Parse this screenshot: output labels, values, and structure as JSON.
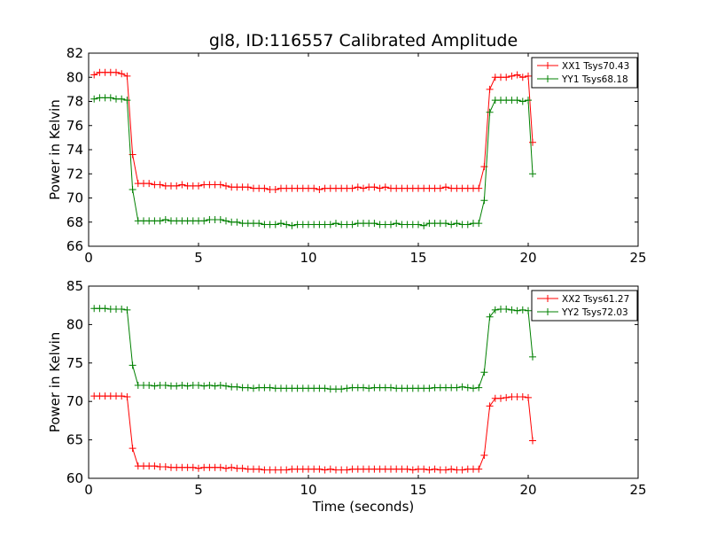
{
  "chart_data": [
    {
      "type": "line",
      "title": "gl8, ID:116557 Calibrated Amplitude",
      "xlabel": "",
      "ylabel": "Power in Kelvin",
      "xlim": [
        0,
        25
      ],
      "ylim": [
        66,
        82
      ],
      "xticks": [
        0,
        5,
        10,
        15,
        20,
        25
      ],
      "yticks": [
        66,
        68,
        70,
        72,
        74,
        76,
        78,
        80,
        82
      ],
      "grid": false,
      "legend_position": "top-right",
      "series": [
        {
          "name": "XX1 Tsys70.43",
          "color": "#ff0000",
          "x": [
            0.25,
            0.5,
            0.75,
            1.0,
            1.25,
            1.5,
            1.75,
            2.0,
            2.25,
            2.5,
            2.75,
            3.0,
            3.25,
            3.5,
            3.75,
            4.0,
            4.25,
            4.5,
            4.75,
            5.0,
            5.25,
            5.5,
            5.75,
            6.0,
            6.25,
            6.5,
            6.75,
            7.0,
            7.25,
            7.5,
            7.75,
            8.0,
            8.25,
            8.5,
            8.75,
            9.0,
            9.25,
            9.5,
            9.75,
            10.0,
            10.25,
            10.5,
            10.75,
            11.0,
            11.25,
            11.5,
            11.75,
            12.0,
            12.25,
            12.5,
            12.75,
            13.0,
            13.25,
            13.5,
            13.75,
            14.0,
            14.25,
            14.5,
            14.75,
            15.0,
            15.25,
            15.5,
            15.75,
            16.0,
            16.25,
            16.5,
            16.75,
            17.0,
            17.25,
            17.5,
            17.75,
            18.0,
            18.25,
            18.5,
            18.75,
            19.0,
            19.25,
            19.5,
            19.75,
            20.0,
            20.2
          ],
          "values": [
            80.2,
            80.4,
            80.4,
            80.4,
            80.4,
            80.3,
            80.1,
            73.6,
            71.2,
            71.2,
            71.2,
            71.1,
            71.1,
            71.0,
            71.0,
            71.0,
            71.1,
            71.0,
            71.0,
            71.0,
            71.1,
            71.1,
            71.1,
            71.1,
            71.0,
            70.9,
            70.9,
            70.9,
            70.9,
            70.8,
            70.8,
            70.8,
            70.7,
            70.7,
            70.8,
            70.8,
            70.8,
            70.8,
            70.8,
            70.8,
            70.8,
            70.7,
            70.8,
            70.8,
            70.8,
            70.8,
            70.8,
            70.8,
            70.9,
            70.8,
            70.9,
            70.9,
            70.8,
            70.9,
            70.8,
            70.8,
            70.8,
            70.8,
            70.8,
            70.8,
            70.8,
            70.8,
            70.8,
            70.8,
            70.9,
            70.8,
            70.8,
            70.8,
            70.8,
            70.8,
            70.8,
            72.6,
            79.0,
            80.0,
            80.0,
            80.0,
            80.1,
            80.2,
            80.0,
            80.1,
            74.6
          ]
        },
        {
          "name": "YY1 Tsys68.18",
          "color": "#008000",
          "x": [
            0.25,
            0.5,
            0.75,
            1.0,
            1.25,
            1.5,
            1.75,
            2.0,
            2.25,
            2.5,
            2.75,
            3.0,
            3.25,
            3.5,
            3.75,
            4.0,
            4.25,
            4.5,
            4.75,
            5.0,
            5.25,
            5.5,
            5.75,
            6.0,
            6.25,
            6.5,
            6.75,
            7.0,
            7.25,
            7.5,
            7.75,
            8.0,
            8.25,
            8.5,
            8.75,
            9.0,
            9.25,
            9.5,
            9.75,
            10.0,
            10.25,
            10.5,
            10.75,
            11.0,
            11.25,
            11.5,
            11.75,
            12.0,
            12.25,
            12.5,
            12.75,
            13.0,
            13.25,
            13.5,
            13.75,
            14.0,
            14.25,
            14.5,
            14.75,
            15.0,
            15.25,
            15.5,
            15.75,
            16.0,
            16.25,
            16.5,
            16.75,
            17.0,
            17.25,
            17.5,
            17.75,
            18.0,
            18.25,
            18.5,
            18.75,
            19.0,
            19.25,
            19.5,
            19.75,
            20.0,
            20.2
          ],
          "values": [
            78.2,
            78.3,
            78.3,
            78.3,
            78.2,
            78.2,
            78.1,
            70.7,
            68.1,
            68.1,
            68.1,
            68.1,
            68.1,
            68.2,
            68.1,
            68.1,
            68.1,
            68.1,
            68.1,
            68.1,
            68.1,
            68.2,
            68.2,
            68.2,
            68.1,
            68.0,
            68.0,
            67.9,
            67.9,
            67.9,
            67.9,
            67.8,
            67.8,
            67.8,
            67.9,
            67.8,
            67.7,
            67.8,
            67.8,
            67.8,
            67.8,
            67.8,
            67.8,
            67.8,
            67.9,
            67.8,
            67.8,
            67.8,
            67.9,
            67.9,
            67.9,
            67.9,
            67.8,
            67.8,
            67.8,
            67.9,
            67.8,
            67.8,
            67.8,
            67.8,
            67.7,
            67.9,
            67.9,
            67.9,
            67.9,
            67.8,
            67.9,
            67.8,
            67.8,
            67.9,
            67.9,
            69.8,
            77.1,
            78.1,
            78.1,
            78.1,
            78.1,
            78.1,
            78.0,
            78.1,
            72.0
          ]
        }
      ]
    },
    {
      "type": "line",
      "title": "",
      "xlabel": "Time (seconds)",
      "ylabel": "Power in Kelvin",
      "xlim": [
        0,
        25
      ],
      "ylim": [
        60,
        85
      ],
      "xticks": [
        0,
        5,
        10,
        15,
        20,
        25
      ],
      "yticks": [
        60,
        65,
        70,
        75,
        80,
        85
      ],
      "grid": false,
      "legend_position": "top-right",
      "series": [
        {
          "name": "XX2 Tsys61.27",
          "color": "#ff0000",
          "x": [
            0.25,
            0.5,
            0.75,
            1.0,
            1.25,
            1.5,
            1.75,
            2.0,
            2.25,
            2.5,
            2.75,
            3.0,
            3.25,
            3.5,
            3.75,
            4.0,
            4.25,
            4.5,
            4.75,
            5.0,
            5.25,
            5.5,
            5.75,
            6.0,
            6.25,
            6.5,
            6.75,
            7.0,
            7.25,
            7.5,
            7.75,
            8.0,
            8.25,
            8.5,
            8.75,
            9.0,
            9.25,
            9.5,
            9.75,
            10.0,
            10.25,
            10.5,
            10.75,
            11.0,
            11.25,
            11.5,
            11.75,
            12.0,
            12.25,
            12.5,
            12.75,
            13.0,
            13.25,
            13.5,
            13.75,
            14.0,
            14.25,
            14.5,
            14.75,
            15.0,
            15.25,
            15.5,
            15.75,
            16.0,
            16.25,
            16.5,
            16.75,
            17.0,
            17.25,
            17.5,
            17.75,
            18.0,
            18.25,
            18.5,
            18.75,
            19.0,
            19.25,
            19.5,
            19.75,
            20.0,
            20.2
          ],
          "values": [
            70.7,
            70.7,
            70.7,
            70.7,
            70.7,
            70.7,
            70.6,
            63.9,
            61.6,
            61.6,
            61.6,
            61.6,
            61.5,
            61.5,
            61.4,
            61.4,
            61.4,
            61.4,
            61.4,
            61.3,
            61.4,
            61.4,
            61.4,
            61.4,
            61.3,
            61.4,
            61.3,
            61.3,
            61.2,
            61.2,
            61.2,
            61.1,
            61.1,
            61.1,
            61.1,
            61.1,
            61.2,
            61.2,
            61.2,
            61.2,
            61.2,
            61.2,
            61.1,
            61.2,
            61.1,
            61.1,
            61.1,
            61.2,
            61.2,
            61.2,
            61.2,
            61.2,
            61.2,
            61.2,
            61.2,
            61.2,
            61.2,
            61.2,
            61.1,
            61.2,
            61.2,
            61.1,
            61.2,
            61.1,
            61.1,
            61.2,
            61.1,
            61.1,
            61.2,
            61.2,
            61.2,
            63.0,
            69.4,
            70.4,
            70.4,
            70.5,
            70.6,
            70.6,
            70.6,
            70.5,
            64.9
          ]
        },
        {
          "name": "YY2 Tsys72.03",
          "color": "#008000",
          "x": [
            0.25,
            0.5,
            0.75,
            1.0,
            1.25,
            1.5,
            1.75,
            2.0,
            2.25,
            2.5,
            2.75,
            3.0,
            3.25,
            3.5,
            3.75,
            4.0,
            4.25,
            4.5,
            4.75,
            5.0,
            5.25,
            5.5,
            5.75,
            6.0,
            6.25,
            6.5,
            6.75,
            7.0,
            7.25,
            7.5,
            7.75,
            8.0,
            8.25,
            8.5,
            8.75,
            9.0,
            9.25,
            9.5,
            9.75,
            10.0,
            10.25,
            10.5,
            10.75,
            11.0,
            11.25,
            11.5,
            11.75,
            12.0,
            12.25,
            12.5,
            12.75,
            13.0,
            13.25,
            13.5,
            13.75,
            14.0,
            14.25,
            14.5,
            14.75,
            15.0,
            15.25,
            15.5,
            15.75,
            16.0,
            16.25,
            16.5,
            16.75,
            17.0,
            17.25,
            17.5,
            17.75,
            18.0,
            18.25,
            18.5,
            18.75,
            19.0,
            19.25,
            19.5,
            19.75,
            20.0,
            20.2
          ],
          "values": [
            82.1,
            82.1,
            82.1,
            82.0,
            82.0,
            82.0,
            81.9,
            74.7,
            72.1,
            72.1,
            72.1,
            72.0,
            72.1,
            72.1,
            72.0,
            72.0,
            72.1,
            72.0,
            72.1,
            72.1,
            72.0,
            72.1,
            72.0,
            72.1,
            72.0,
            71.9,
            71.9,
            71.8,
            71.8,
            71.7,
            71.8,
            71.8,
            71.8,
            71.7,
            71.7,
            71.7,
            71.7,
            71.7,
            71.7,
            71.7,
            71.7,
            71.7,
            71.7,
            71.6,
            71.6,
            71.6,
            71.7,
            71.8,
            71.8,
            71.8,
            71.7,
            71.8,
            71.8,
            71.8,
            71.8,
            71.7,
            71.7,
            71.7,
            71.7,
            71.7,
            71.7,
            71.7,
            71.8,
            71.8,
            71.8,
            71.8,
            71.8,
            71.9,
            71.8,
            71.7,
            71.8,
            73.8,
            81.0,
            81.9,
            82.0,
            82.0,
            81.9,
            81.8,
            81.9,
            81.8,
            75.8
          ]
        }
      ]
    }
  ]
}
